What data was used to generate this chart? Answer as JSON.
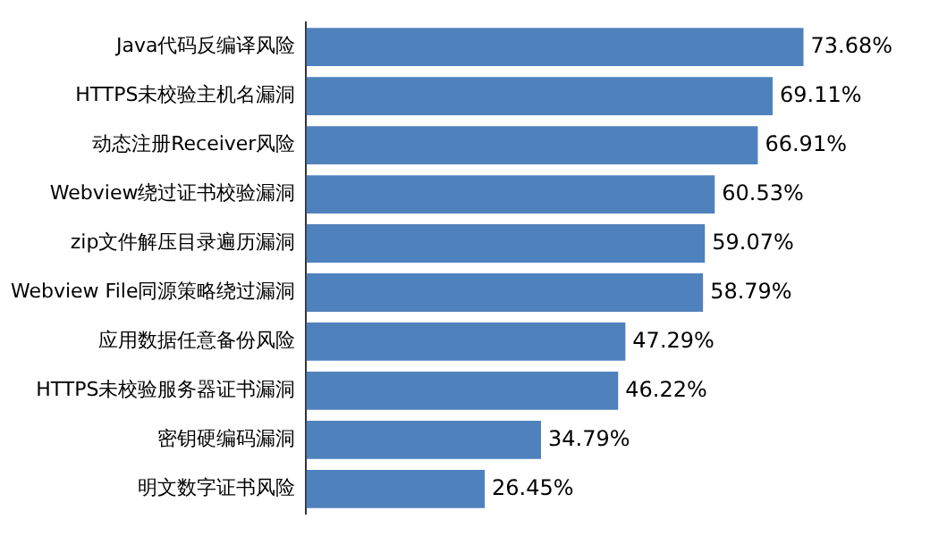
{
  "chart_data": {
    "type": "bar",
    "orientation": "horizontal",
    "categories": [
      "Java代码反编译风险",
      "HTTPS未校验主机名漏洞",
      "动态注册Receiver风险",
      "Webview绕过证书校验漏洞",
      "zip文件解压目录遍历漏洞",
      "Webview File同源策略绕过漏洞",
      "应用数据任意备份风险",
      "HTTPS未校验服务器证书漏洞",
      "密钥硬编码漏洞",
      "明文数字证书风险"
    ],
    "values": [
      73.68,
      69.11,
      66.91,
      60.53,
      59.07,
      58.79,
      47.29,
      46.22,
      34.79,
      26.45
    ],
    "value_labels": [
      "73.68%",
      "69.11%",
      "66.91%",
      "60.53%",
      "59.07%",
      "58.79%",
      "47.29%",
      "46.22%",
      "34.79%",
      "26.45%"
    ],
    "color": "#4f81bd",
    "grid": false,
    "legend": false,
    "tick_labels": "y"
  }
}
